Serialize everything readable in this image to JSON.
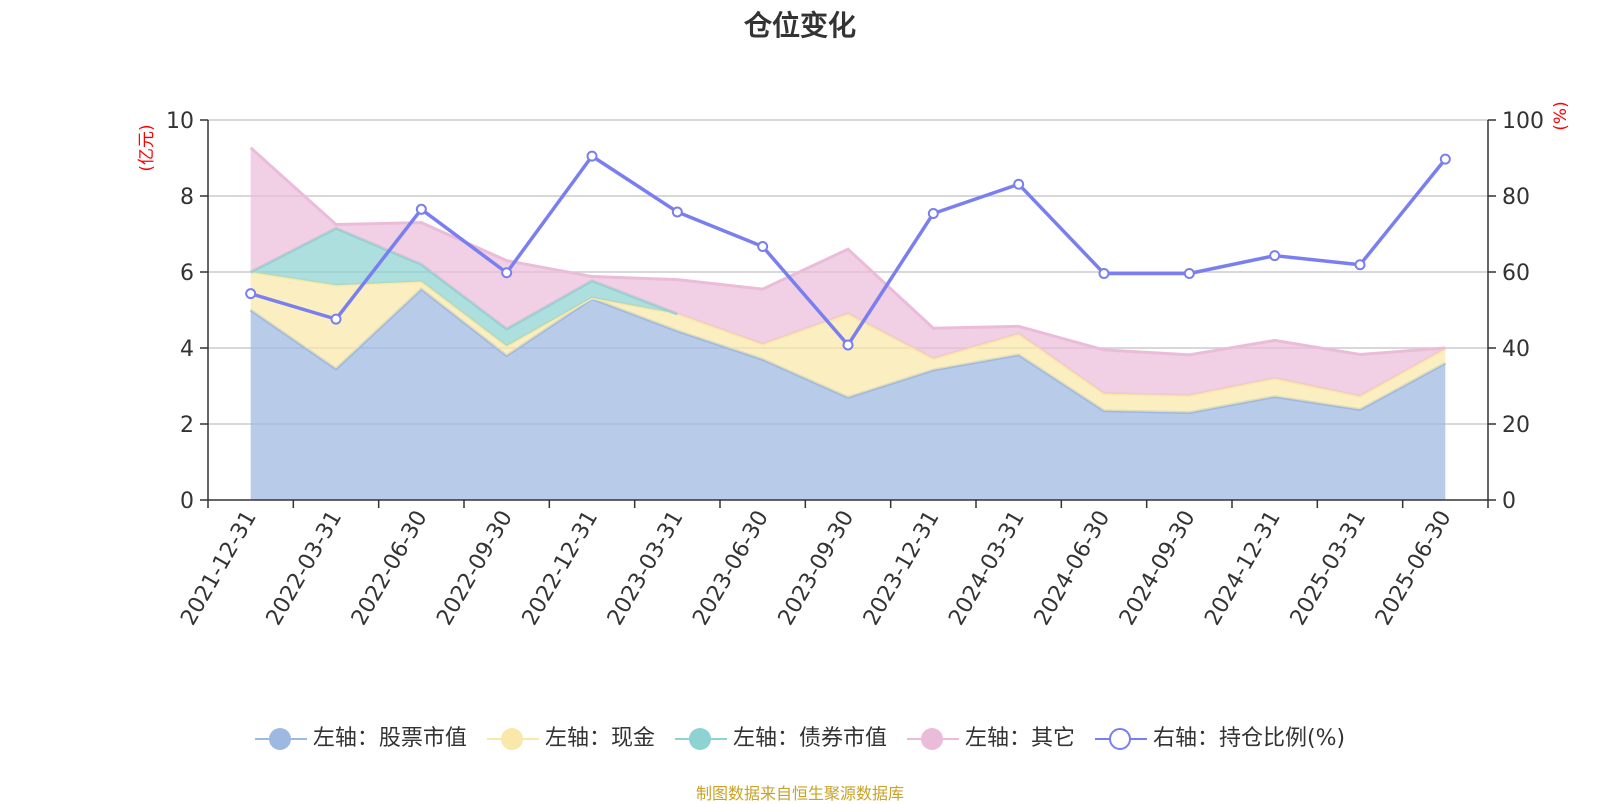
{
  "chart_data": {
    "type": "area",
    "title": "仓位变化",
    "left_axis": {
      "unit_label": "(亿元)",
      "range": [
        0,
        10
      ],
      "ticks": [
        0,
        2,
        4,
        6,
        8,
        10
      ]
    },
    "right_axis": {
      "unit_label": "(%)",
      "range": [
        0,
        100
      ],
      "ticks": [
        0,
        20,
        40,
        60,
        80,
        100
      ]
    },
    "categories": [
      "2021-12-31",
      "2022-03-31",
      "2022-06-30",
      "2022-09-30",
      "2022-12-31",
      "2023-03-31",
      "2023-06-30",
      "2023-09-30",
      "2023-12-31",
      "2024-03-31",
      "2024-06-30",
      "2024-09-30",
      "2024-12-31",
      "2025-03-31",
      "2025-06-30"
    ],
    "stacked": true,
    "grid": true,
    "legend_position": "bottom",
    "series": [
      {
        "name": "左轴：股票市值",
        "axis": "left",
        "color": "#9db9e2",
        "values": [
          5.0,
          3.45,
          5.55,
          3.8,
          5.3,
          4.45,
          3.7,
          2.7,
          3.42,
          3.82,
          2.35,
          2.3,
          2.72,
          2.38,
          3.6
        ]
      },
      {
        "name": "左轴：现金",
        "axis": "left",
        "color": "#f9e8a9",
        "values": [
          1.0,
          2.2,
          0.2,
          0.25,
          0.02,
          0.45,
          0.4,
          2.2,
          0.3,
          0.55,
          0.45,
          0.45,
          0.48,
          0.35,
          0.38
        ]
      },
      {
        "name": "左轴：债券市值",
        "axis": "left",
        "color": "#8dd3d1",
        "values": [
          0.0,
          1.5,
          0.45,
          0.45,
          0.45,
          0.0,
          0.0,
          0.0,
          0.0,
          0.0,
          0.0,
          0.0,
          0.0,
          0.0,
          0.0
        ]
      },
      {
        "name": "左轴：其它",
        "axis": "left",
        "color": "#ebbcd9",
        "values": [
          3.27,
          0.1,
          1.1,
          1.8,
          0.11,
          0.9,
          1.45,
          1.7,
          0.8,
          0.2,
          1.15,
          1.07,
          1.0,
          1.1,
          0.02
        ]
      },
      {
        "name": "右轴：持仓比例(%)",
        "axis": "right",
        "color": "#7a7ff0",
        "type": "line",
        "values": [
          54.3,
          47.6,
          76.5,
          59.8,
          90.5,
          75.8,
          66.7,
          40.8,
          75.4,
          83.1,
          59.6,
          59.6,
          64.3,
          61.9,
          89.7
        ]
      }
    ]
  },
  "source_note": "制图数据来自恒生聚源数据库"
}
